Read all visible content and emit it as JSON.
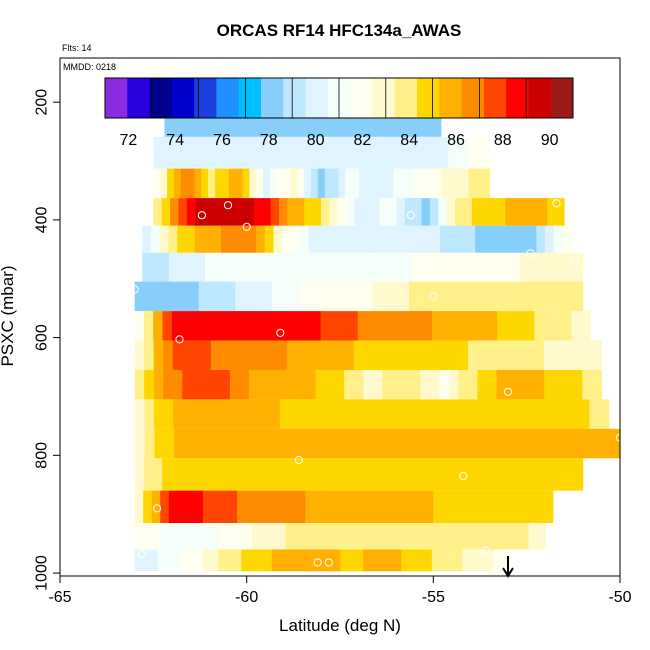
{
  "chart_data": {
    "type": "heatmap",
    "title": "ORCAS RF14 HFC134a_AWAS",
    "top_left_note": "Flts: 14",
    "inner_note": "MMDD: 0218",
    "xlabel": "Latitude (deg N)",
    "ylabel": "PSXC (mbar)",
    "xlim": [
      -65,
      -50
    ],
    "ylim": [
      1005,
      125
    ],
    "x_ticks": [
      -65,
      -60,
      -55,
      -50
    ],
    "y_ticks": [
      200,
      400,
      600,
      800,
      1000
    ],
    "colorbar": {
      "range": [
        71,
        91
      ],
      "ticks": [
        72,
        74,
        76,
        78,
        80,
        82,
        84,
        86,
        88,
        90
      ],
      "colors": [
        "#8a2be2",
        "#2a00e0",
        "#00008b",
        "#0000cd",
        "#1c3fdc",
        "#1e90ff",
        "#00bfff",
        "#87cefa",
        "#bde8ff",
        "#e0f4ff",
        "#f5fffa",
        "#fffff0",
        "#fffacd",
        "#fff08a",
        "#ffd700",
        "#ffb000",
        "#ff8c00",
        "#ff4500",
        "#ff0000",
        "#cd0000",
        "#9b1a1a"
      ]
    },
    "rows": [
      {
        "p": 180,
        "x0": -62.0,
        "x1": -55.5,
        "v": [
          77,
          74,
          72,
          73,
          74,
          74,
          74,
          73,
          74,
          75,
          76,
          76,
          77
        ]
      },
      {
        "p": 230,
        "x0": -62.2,
        "x1": -54.8,
        "v": [
          78,
          78,
          78,
          78,
          78,
          78,
          78,
          78,
          78,
          78,
          78,
          78,
          78
        ]
      },
      {
        "p": 288,
        "x0": -62.5,
        "x1": -53.5,
        "v": [
          80,
          80,
          80,
          80,
          80,
          80,
          80,
          80,
          80,
          80,
          80,
          81,
          82
        ]
      },
      {
        "p": 338,
        "x0": -62.5,
        "x1": -53.5,
        "v": [
          82,
          87,
          84,
          86,
          80,
          83,
          78,
          81,
          80,
          81,
          82,
          83,
          84
        ]
      },
      {
        "p": 388,
        "x0": -62.5,
        "x1": -51.5,
        "v": [
          84,
          89,
          90,
          89,
          86,
          84,
          80,
          81,
          78,
          84,
          85,
          86,
          85
        ]
      },
      {
        "p": 432,
        "x0": -62.8,
        "x1": -51.3,
        "v": [
          80,
          85,
          86,
          87,
          82,
          80,
          80,
          80,
          80,
          79,
          78,
          78,
          82
        ]
      },
      {
        "p": 480,
        "x0": -62.8,
        "x1": -51.0,
        "v": [
          79,
          80,
          81,
          81,
          81,
          81,
          81,
          81,
          82,
          82,
          82,
          83,
          83
        ]
      },
      {
        "p": 530,
        "x0": -63.0,
        "x1": -51.0,
        "v": [
          78,
          78,
          79,
          80,
          81,
          82,
          82,
          83,
          84,
          84,
          84,
          84,
          84
        ]
      },
      {
        "p": 580,
        "x0": -63.0,
        "x1": -50.8,
        "v": [
          82,
          89,
          89,
          89,
          89,
          88,
          87,
          87,
          86,
          86,
          85,
          84,
          83
        ]
      },
      {
        "p": 630,
        "x0": -63.0,
        "x1": -50.5,
        "v": [
          83,
          88,
          87,
          87,
          86,
          86,
          85,
          85,
          85,
          84,
          84,
          83,
          83
        ]
      },
      {
        "p": 680,
        "x0": -63.0,
        "x1": -50.5,
        "v": [
          84,
          87,
          88,
          86,
          86,
          85,
          83,
          84,
          82,
          85,
          86,
          85,
          84
        ]
      },
      {
        "p": 730,
        "x0": -63.0,
        "x1": -50.3,
        "v": [
          83,
          86,
          86,
          86,
          85,
          85,
          85,
          85,
          85,
          85,
          85,
          85,
          84
        ]
      },
      {
        "p": 780,
        "x0": -63.0,
        "x1": -50.0,
        "v": [
          83,
          86,
          86,
          86,
          86,
          86,
          86,
          86,
          86,
          86,
          86,
          86,
          86
        ]
      },
      {
        "p": 830,
        "x0": -63.0,
        "x1": -51.0,
        "v": [
          83,
          85,
          85,
          85,
          85,
          85,
          85,
          85,
          85,
          85,
          85,
          85,
          85
        ]
      },
      {
        "p": 890,
        "x0": -63.0,
        "x1": -51.8,
        "v": [
          83,
          89,
          88,
          87,
          87,
          86,
          86,
          86,
          86,
          85,
          85,
          85,
          85
        ]
      },
      {
        "p": 940,
        "x0": -63.0,
        "x1": -52.0,
        "v": [
          82,
          81,
          81,
          82,
          83,
          84,
          84,
          84,
          84,
          84,
          84,
          84,
          83
        ]
      },
      {
        "p": 980,
        "x0": -63.0,
        "x1": -53.0,
        "v": [
          80,
          81,
          82,
          84,
          85,
          86,
          86,
          85,
          86,
          85,
          84,
          83,
          82
        ]
      }
    ],
    "sample_points": [
      {
        "lat": -62.0,
        "p": 180
      },
      {
        "lat": -61.8,
        "p": 180
      },
      {
        "lat": -60.4,
        "p": 180
      },
      {
        "lat": -57.5,
        "p": 180
      },
      {
        "lat": -55.6,
        "p": 180
      },
      {
        "lat": -62.6,
        "p": 288
      },
      {
        "lat": -60.5,
        "p": 375
      },
      {
        "lat": -61.2,
        "p": 392
      },
      {
        "lat": -60.0,
        "p": 412
      },
      {
        "lat": -56.2,
        "p": 372
      },
      {
        "lat": -55.6,
        "p": 392
      },
      {
        "lat": -51.7,
        "p": 372
      },
      {
        "lat": -52.4,
        "p": 457
      },
      {
        "lat": -51.2,
        "p": 470
      },
      {
        "lat": -56.6,
        "p": 465
      },
      {
        "lat": -55.0,
        "p": 530
      },
      {
        "lat": -63.0,
        "p": 518
      },
      {
        "lat": -61.8,
        "p": 603
      },
      {
        "lat": -59.1,
        "p": 592
      },
      {
        "lat": -54.6,
        "p": 675
      },
      {
        "lat": -53.0,
        "p": 692
      },
      {
        "lat": -58.6,
        "p": 808
      },
      {
        "lat": -54.2,
        "p": 835
      },
      {
        "lat": -62.4,
        "p": 890
      },
      {
        "lat": -62.9,
        "p": 945
      },
      {
        "lat": -62.8,
        "p": 968
      },
      {
        "lat": -58.1,
        "p": 982
      },
      {
        "lat": -57.8,
        "p": 982
      },
      {
        "lat": -53.6,
        "p": 962
      },
      {
        "lat": -50.0,
        "p": 770
      }
    ],
    "arrow_marker": {
      "lat": -53.0
    }
  }
}
